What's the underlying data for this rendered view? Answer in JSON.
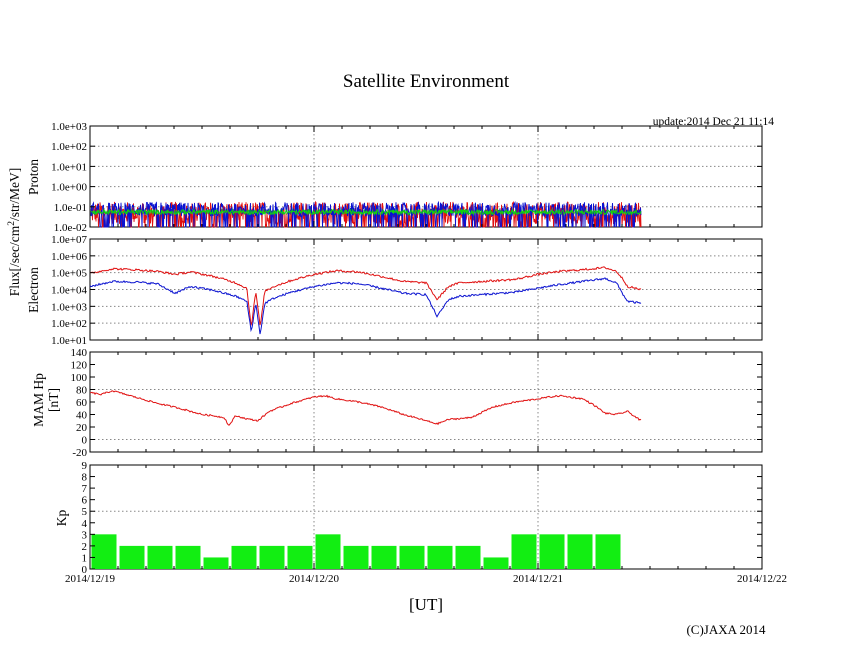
{
  "header": {
    "title": "Satellite Environment",
    "update": "update:2014 Dec 21 11:14",
    "copyright": "(C)JAXA 2014"
  },
  "colors": {
    "red": "#e01010",
    "blue": "#0a12d0",
    "green": "#10d010",
    "kp_bar": "#12ee12"
  },
  "chart_data": [
    {
      "name": "proton",
      "type": "line",
      "scale": "log",
      "ylabel": "Proton",
      "shared_ylabel": "Flux[/sec/cm2/str/MeV]",
      "ylim": [
        0.01,
        1000
      ],
      "yticks": [
        0.01,
        0.1,
        1,
        10,
        100,
        1000
      ],
      "ytick_labels": [
        "1.0e-02",
        "1.0e-01",
        "1.0e+00",
        "1.0e+01",
        "1.0e+02",
        "1.0e+03"
      ],
      "xlim_days": [
        0,
        3
      ],
      "data_end_day": 2.46,
      "series": [
        {
          "name": "proton-red",
          "color": "#e01010",
          "level": 0.05,
          "noise_decades": 0.55
        },
        {
          "name": "proton-blue",
          "color": "#0a12d0",
          "level": 0.075,
          "noise_decades": 0.35
        },
        {
          "name": "proton-green",
          "color": "#10d010",
          "level": 0.055,
          "noise_decades": 0.12
        }
      ]
    },
    {
      "name": "electron",
      "type": "line",
      "scale": "log",
      "ylabel": "Electron",
      "ylim": [
        10,
        10000000
      ],
      "yticks": [
        10,
        100,
        1000,
        10000,
        100000,
        1000000,
        10000000
      ],
      "ytick_labels": [
        "1.0e+01",
        "1.0e+02",
        "1.0e+03",
        "1.0e+04",
        "1.0e+05",
        "1.0e+06",
        "1.0e+07"
      ],
      "xlim_days": [
        0,
        3
      ],
      "series": [
        {
          "name": "electron-red",
          "color": "#e01010",
          "x": [
            0,
            0.1,
            0.2,
            0.3,
            0.38,
            0.45,
            0.55,
            0.6,
            0.65,
            0.7,
            0.72,
            0.74,
            0.76,
            0.78,
            0.82,
            0.9,
            1.0,
            1.1,
            1.2,
            1.3,
            1.4,
            1.5,
            1.55,
            1.6,
            1.65,
            1.75,
            1.9,
            2.0,
            2.1,
            2.2,
            2.3,
            2.35,
            2.38,
            2.4,
            2.46
          ],
          "y": [
            90000,
            170000,
            150000,
            120000,
            80000,
            110000,
            60000,
            40000,
            25000,
            12000,
            60,
            8000,
            60,
            8000,
            15000,
            35000,
            80000,
            130000,
            110000,
            60000,
            30000,
            25000,
            2500,
            15000,
            25000,
            30000,
            40000,
            80000,
            120000,
            150000,
            200000,
            120000,
            40000,
            15000,
            10000
          ]
        },
        {
          "name": "electron-blue",
          "color": "#0a12d0",
          "x": [
            0,
            0.1,
            0.2,
            0.3,
            0.38,
            0.45,
            0.55,
            0.6,
            0.65,
            0.7,
            0.72,
            0.74,
            0.76,
            0.78,
            0.82,
            0.9,
            1.0,
            1.1,
            1.2,
            1.3,
            1.4,
            1.5,
            1.55,
            1.6,
            1.65,
            1.75,
            1.9,
            2.0,
            2.1,
            2.2,
            2.3,
            2.35,
            2.38,
            2.4,
            2.46
          ],
          "y": [
            15000,
            30000,
            28000,
            22000,
            6000,
            15000,
            9000,
            6000,
            4000,
            2000,
            30,
            1500,
            20,
            1500,
            3000,
            7000,
            15000,
            25000,
            22000,
            12000,
            6000,
            5000,
            250,
            2500,
            4000,
            5000,
            7000,
            12000,
            20000,
            30000,
            45000,
            25000,
            5000,
            2000,
            1500
          ]
        }
      ]
    },
    {
      "name": "mam-hp",
      "type": "line",
      "scale": "linear",
      "ylabel": [
        "MAM Hp",
        "[nT]"
      ],
      "ylim": [
        -20,
        140
      ],
      "yticks": [
        -20,
        0,
        20,
        40,
        60,
        80,
        100,
        120,
        140
      ],
      "ytick_labels": [
        "-20",
        "0",
        "20",
        "40",
        "60",
        "80",
        "100",
        "120",
        "140"
      ],
      "xlim_days": [
        0,
        3
      ],
      "series": [
        {
          "name": "mam-hp-red",
          "color": "#e01010",
          "x": [
            0,
            0.05,
            0.1,
            0.2,
            0.3,
            0.4,
            0.5,
            0.55,
            0.6,
            0.62,
            0.65,
            0.7,
            0.75,
            0.8,
            0.9,
            1.0,
            1.05,
            1.1,
            1.2,
            1.3,
            1.4,
            1.5,
            1.55,
            1.6,
            1.7,
            1.8,
            1.9,
            2.0,
            2.05,
            2.1,
            2.2,
            2.25,
            2.3,
            2.35,
            2.4,
            2.46
          ],
          "y": [
            75,
            72,
            78,
            68,
            58,
            50,
            40,
            38,
            35,
            22,
            38,
            33,
            30,
            45,
            58,
            68,
            70,
            65,
            60,
            52,
            40,
            30,
            25,
            32,
            35,
            52,
            60,
            65,
            68,
            70,
            65,
            55,
            42,
            40,
            45,
            30
          ]
        }
      ]
    },
    {
      "name": "kp",
      "type": "bar",
      "scale": "linear",
      "ylabel": "Kp",
      "ylim": [
        0,
        9
      ],
      "yticks": [
        0,
        1,
        2,
        3,
        4,
        5,
        6,
        7,
        8,
        9
      ],
      "ytick_labels": [
        "0",
        "1",
        "2",
        "3",
        "4",
        "5",
        "6",
        "7",
        "8",
        "9"
      ],
      "xlim_days": [
        0,
        3
      ],
      "bar_hours": 3,
      "values": [
        3,
        2,
        2,
        2,
        1,
        2,
        2,
        2,
        3,
        2,
        2,
        2,
        2,
        2,
        1,
        3,
        3,
        3,
        3
      ],
      "threshold_line": 5,
      "xtick_labels": [
        "2014/12/19",
        "2014/12/20",
        "2014/12/21",
        "2014/12/22"
      ],
      "xlabel": "[UT]"
    }
  ]
}
